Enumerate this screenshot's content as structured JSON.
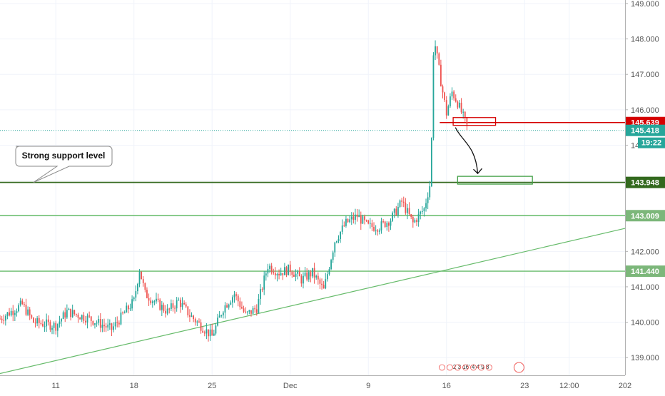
{
  "chart_data": {
    "type": "candlestick",
    "y_ticks": [
      139,
      140,
      141,
      142,
      143,
      144,
      145,
      146,
      147,
      148,
      149
    ],
    "y_tick_labels": [
      "139.000",
      "140.000",
      "141.000",
      "142.000",
      "143.000",
      "144.000",
      "145.000",
      "146.000",
      "147.000",
      "148.000",
      "149.000"
    ],
    "ylim": [
      138.5,
      149.1
    ],
    "x_ticks": [
      {
        "label": "11",
        "date": "2019-11-11"
      },
      {
        "label": "18",
        "date": "2019-11-18"
      },
      {
        "label": "25",
        "date": "2019-11-25"
      },
      {
        "label": "Dec",
        "date": "2019-12-02"
      },
      {
        "label": "9",
        "date": "2019-12-09"
      },
      {
        "label": "16",
        "date": "2019-12-16"
      },
      {
        "label": "23",
        "date": "2019-12-23"
      },
      {
        "label": "12:00",
        "date": "2019-12-27"
      },
      {
        "label": "202",
        "date": "2020-01-01"
      }
    ],
    "xlim": [
      "2019-11-06",
      "2020-01-01"
    ],
    "up_color": "#26a69a",
    "down_color": "#ef5350",
    "price_path": [
      [
        "2019-11-06",
        140.1
      ],
      [
        "2019-11-08",
        140.5
      ],
      [
        "2019-11-09",
        140.0
      ],
      [
        "2019-11-11",
        139.9
      ],
      [
        "2019-11-12",
        140.3
      ],
      [
        "2019-11-14",
        140.1
      ],
      [
        "2019-11-16",
        139.8
      ],
      [
        "2019-11-18",
        140.6
      ],
      [
        "2019-11-18.5",
        141.5
      ],
      [
        "2019-11-19",
        140.8
      ],
      [
        "2019-11-21",
        140.3
      ],
      [
        "2019-11-22",
        140.6
      ],
      [
        "2019-11-23",
        140.2
      ],
      [
        "2019-11-25",
        139.6
      ],
      [
        "2019-11-26",
        140.4
      ],
      [
        "2019-11-27",
        140.8
      ],
      [
        "2019-11-28",
        140.2
      ],
      [
        "2019-11-29",
        140.4
      ],
      [
        "2019-11-30",
        141.6
      ],
      [
        "2019-12-01",
        141.4
      ],
      [
        "2019-12-02",
        141.5
      ],
      [
        "2019-12-03",
        141.2
      ],
      [
        "2019-12-04",
        141.4
      ],
      [
        "2019-12-05",
        140.9
      ],
      [
        "2019-12-06",
        142.3
      ],
      [
        "2019-12-07",
        142.8
      ],
      [
        "2019-12-08",
        143.0
      ],
      [
        "2019-12-09",
        142.7
      ],
      [
        "2019-12-10",
        142.7
      ],
      [
        "2019-12-11",
        142.9
      ],
      [
        "2019-12-12",
        143.4
      ],
      [
        "2019-12-13",
        142.8
      ],
      [
        "2019-12-14",
        143.2
      ],
      [
        "2019-12-14.6",
        144.0
      ],
      [
        "2019-12-14.8",
        147.6
      ],
      [
        "2019-12-15",
        147.8
      ],
      [
        "2019-12-15.5",
        146.8
      ],
      [
        "2019-12-16",
        145.9
      ],
      [
        "2019-12-16.5",
        146.5
      ],
      [
        "2019-12-17",
        146.2
      ],
      [
        "2019-12-17.5",
        145.8
      ],
      [
        "2019-12-18",
        145.4
      ]
    ],
    "horizontal_levels": [
      {
        "value": 145.639,
        "label": "145.639",
        "color": "#d50000",
        "style": "bracket"
      },
      {
        "value": 145.418,
        "label": "145.418",
        "color": "#26a69a",
        "style": "dotted"
      },
      {
        "value": 143.948,
        "label": "143.948",
        "color": "#33691e",
        "style": "solid"
      },
      {
        "value": 143.009,
        "label": "143.009",
        "color": "#66bb6a",
        "style": "solid"
      },
      {
        "value": 141.44,
        "label": "141.440",
        "color": "#66bb6a",
        "style": "solid"
      }
    ],
    "countdown_label": "19:22",
    "trendline": {
      "from": [
        "2019-11-06",
        138.55
      ],
      "to": [
        "2020-01-01",
        142.65
      ],
      "color": "#66bb6a"
    },
    "annotation": {
      "text": "Strong support level",
      "points_to": [
        "2019-11-09",
        143.948
      ]
    },
    "zones": [
      {
        "from": "2019-12-16.6",
        "to": "2019-12-20.4",
        "low": 145.56,
        "high": 145.78,
        "color": "#d50000"
      },
      {
        "from": "2019-12-17",
        "to": "2019-12-23.7",
        "low": 143.9,
        "high": 144.12,
        "color": "#43a047"
      }
    ],
    "arrow_path": [
      [
        "2019-12-16.8",
        145.5
      ],
      [
        "2019-12-17.4",
        145.1
      ],
      [
        "2019-12-18.6",
        145.0
      ],
      [
        "2019-12-18.8",
        144.2
      ]
    ],
    "economic_events_labels": "2 3 16' 4 4 9 8"
  },
  "axis_color": "#b0b0b0",
  "grid_color": "#f0f3fa"
}
